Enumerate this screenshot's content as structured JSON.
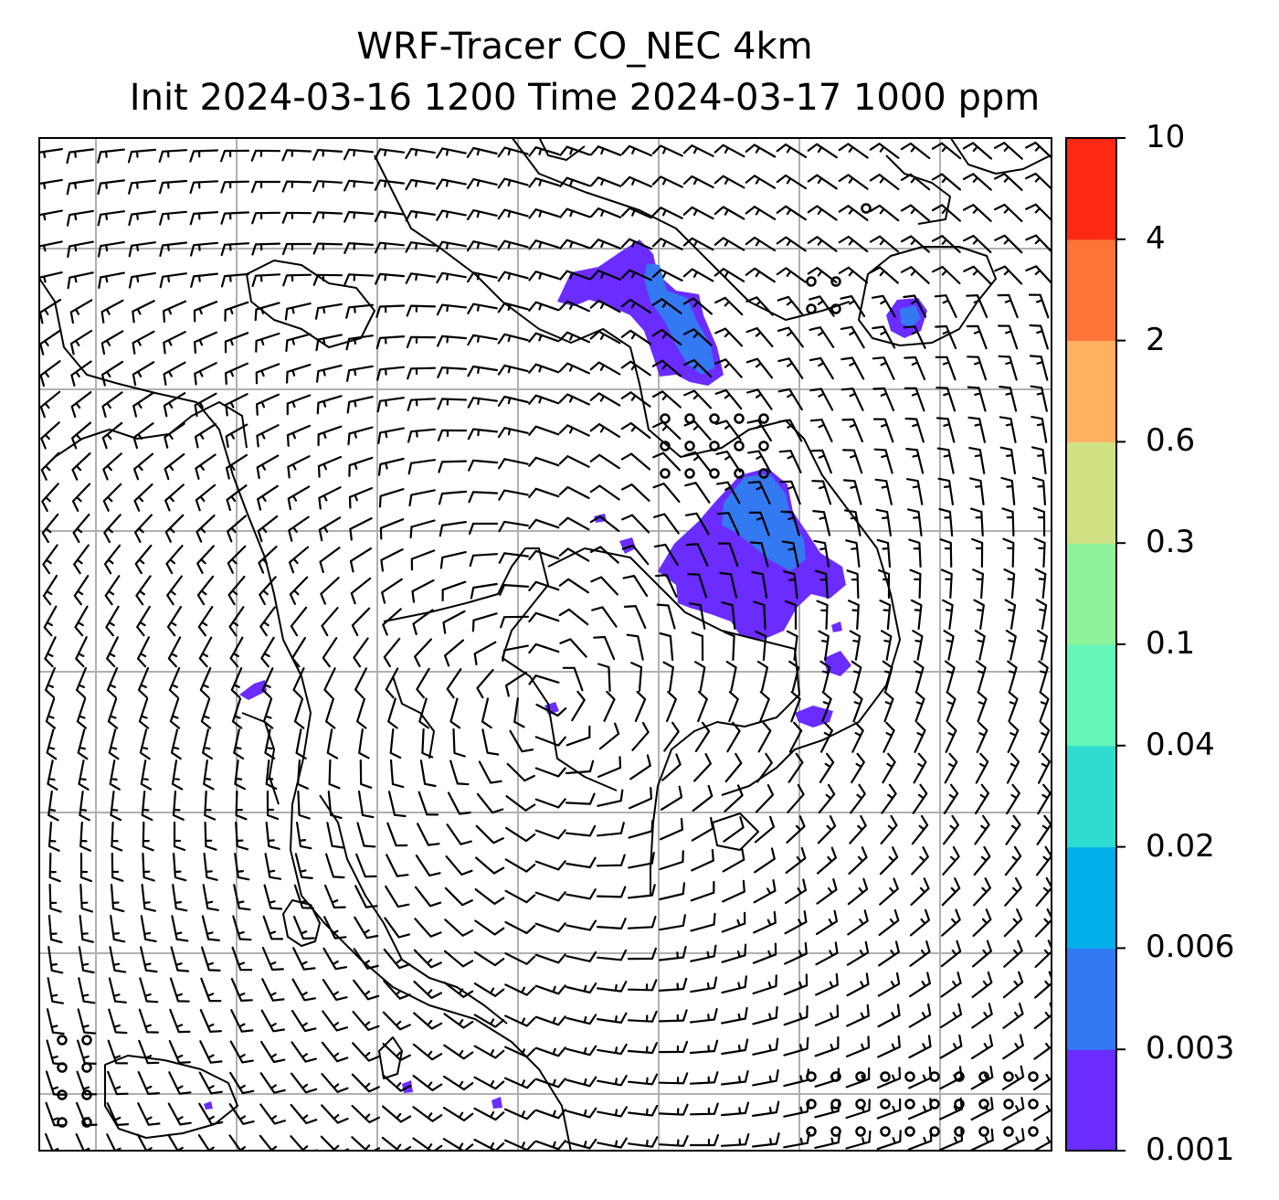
{
  "title": {
    "line1": "WRF-Tracer CO_NEC 4km",
    "line2": "Init 2024-03-16 1200 Time 2024-03-17 1000 ppm"
  },
  "colorbar": {
    "levels": [
      "0.001",
      "0.003",
      "0.006",
      "0.02",
      "0.04",
      "0.1",
      "0.3",
      "0.6",
      "2",
      "4",
      "10"
    ],
    "colors": [
      "#6a2cff",
      "#3379f1",
      "#00b0e8",
      "#2fdcd0",
      "#63f6b8",
      "#8ff39c",
      "#d0e183",
      "#ffb061",
      "#ff7438",
      "#ff2914"
    ]
  },
  "map": {
    "field": "CO_NEC tracer concentration (ppm) with wind barbs",
    "gridlines": true,
    "plumes_color_level": "0.001-0.003 ppm (purple) with small 0.003-0.006 ppm cores (blue)"
  }
}
